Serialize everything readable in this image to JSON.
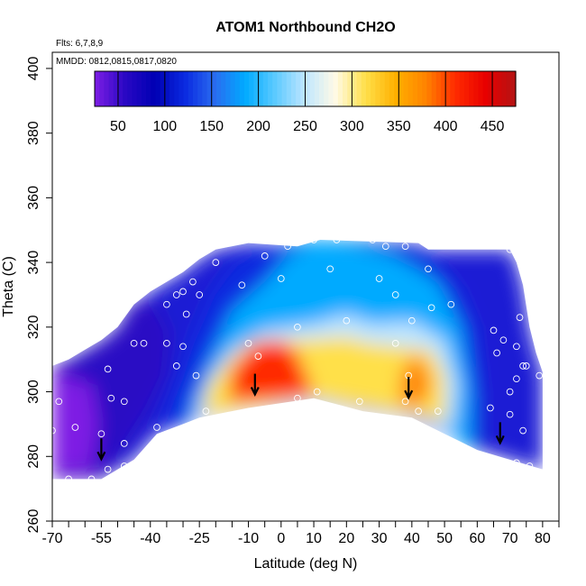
{
  "chart_data": {
    "type": "heatmap",
    "title": "ATOM1 Northbound CH2O",
    "notes": [
      "Flts: 6,7,8,9",
      "MMDD: 0812,0815,0817,0820"
    ],
    "xlabel": "Latitude (deg N)",
    "ylabel": "Theta (C)",
    "xlim": [
      -70,
      85
    ],
    "ylim": [
      260,
      405
    ],
    "xticks_labeled": [
      -70,
      -55,
      -40,
      -25,
      -10,
      0,
      10,
      20,
      30,
      40,
      50,
      60,
      70,
      80
    ],
    "xticks_minor": [
      -65,
      -60,
      -50,
      -45,
      -35,
      -30,
      -20,
      -15,
      -5,
      5,
      15,
      25,
      35,
      45,
      55,
      65,
      75,
      85
    ],
    "yticks": [
      260,
      280,
      300,
      320,
      340,
      360,
      380,
      400
    ],
    "colorbar": {
      "min": 25,
      "max": 475,
      "labels": [
        50,
        100,
        150,
        200,
        250,
        300,
        350,
        400,
        450
      ],
      "dividers": [
        50,
        100,
        150,
        200,
        250,
        300,
        350,
        400,
        450
      ],
      "colors": [
        "#7e1ee4",
        "#2a08c4",
        "#0000b4",
        "#0a2ae0",
        "#2a6cf0",
        "#00aaff",
        "#5ccaff",
        "#bfe6ff",
        "#fffae6",
        "#ffe04a",
        "#ffb000",
        "#ff8400",
        "#ff2a00",
        "#e80000",
        "#b41414"
      ]
    },
    "surface_boundary": {
      "lower": [
        [
          -70,
          273
        ],
        [
          -55,
          273
        ],
        [
          -50,
          276
        ],
        [
          -45,
          279
        ],
        [
          -38,
          287
        ],
        [
          -30,
          290
        ],
        [
          -25,
          292
        ],
        [
          -10,
          295
        ],
        [
          10,
          298
        ],
        [
          25,
          294
        ],
        [
          40,
          292
        ],
        [
          50,
          287
        ],
        [
          60,
          282
        ],
        [
          70,
          279
        ],
        [
          80,
          276
        ]
      ],
      "upper": [
        [
          80,
          306
        ],
        [
          78,
          312
        ],
        [
          76,
          320
        ],
        [
          74,
          333
        ],
        [
          72,
          340
        ],
        [
          70,
          344
        ],
        [
          45,
          344
        ],
        [
          42,
          346
        ],
        [
          12,
          347
        ],
        [
          5,
          345
        ],
        [
          -10,
          346
        ],
        [
          -20,
          344
        ],
        [
          -25,
          341
        ],
        [
          -30,
          337
        ],
        [
          -40,
          331
        ],
        [
          -45,
          327
        ],
        [
          -50,
          320
        ],
        [
          -55,
          316
        ],
        [
          -60,
          313
        ],
        [
          -65,
          310
        ],
        [
          -70,
          308
        ]
      ]
    },
    "field_levels": [
      {
        "value": 70,
        "polygon": [
          [
            -70,
            273
          ],
          [
            -54,
            273
          ],
          [
            -50,
            279
          ],
          [
            -45,
            287
          ],
          [
            -40,
            295
          ],
          [
            -35,
            305
          ],
          [
            -34,
            318
          ],
          [
            -38,
            327
          ],
          [
            -46,
            328
          ],
          [
            -50,
            320
          ],
          [
            -55,
            316
          ],
          [
            -60,
            313
          ],
          [
            -65,
            310
          ],
          [
            -70,
            308
          ]
        ]
      },
      {
        "value": 40,
        "polygon": [
          [
            -70,
            275
          ],
          [
            -58,
            276
          ],
          [
            -56,
            290
          ],
          [
            -58,
            302
          ],
          [
            -70,
            306
          ]
        ]
      },
      {
        "value": 130,
        "polygon": [
          [
            -38,
            287
          ],
          [
            -25,
            292
          ],
          [
            0,
            296
          ],
          [
            30,
            295
          ],
          [
            50,
            287
          ],
          [
            62,
            283
          ],
          [
            62,
            300
          ],
          [
            60,
            320
          ],
          [
            55,
            332
          ],
          [
            45,
            343
          ],
          [
            25,
            346
          ],
          [
            10,
            347
          ],
          [
            -5,
            345
          ],
          [
            -15,
            340
          ],
          [
            -22,
            330
          ],
          [
            -28,
            316
          ],
          [
            -33,
            302
          ]
        ]
      },
      {
        "value": 200,
        "polygon": [
          [
            -29,
            292
          ],
          [
            -5,
            295
          ],
          [
            20,
            296
          ],
          [
            45,
            291
          ],
          [
            58,
            282
          ],
          [
            58,
            300
          ],
          [
            55,
            320
          ],
          [
            48,
            334
          ],
          [
            35,
            342
          ],
          [
            20,
            346
          ],
          [
            10,
            347
          ],
          [
            2,
            342
          ],
          [
            -5,
            334
          ],
          [
            -15,
            325
          ],
          [
            -22,
            310
          ]
        ]
      },
      {
        "value": 260,
        "polygon": [
          [
            -26,
            293
          ],
          [
            -10,
            296
          ],
          [
            15,
            297
          ],
          [
            40,
            293
          ],
          [
            52,
            288
          ],
          [
            54,
            302
          ],
          [
            50,
            316
          ],
          [
            40,
            322
          ],
          [
            28,
            321
          ],
          [
            20,
            324
          ],
          [
            10,
            321
          ],
          [
            -5,
            319
          ],
          [
            -15,
            313
          ],
          [
            -22,
            304
          ]
        ]
      },
      {
        "value": 320,
        "polygon": [
          [
            -24,
            293
          ],
          [
            -10,
            295
          ],
          [
            10,
            298
          ],
          [
            40,
            293
          ],
          [
            50,
            291
          ],
          [
            50,
            305
          ],
          [
            46,
            313
          ],
          [
            36,
            314
          ],
          [
            27,
            315
          ],
          [
            20,
            317
          ],
          [
            5,
            316
          ],
          [
            -8,
            316
          ],
          [
            -16,
            310
          ],
          [
            -22,
            302
          ]
        ]
      },
      {
        "value": 400,
        "polygon": [
          [
            -16,
            297
          ],
          [
            0,
            298
          ],
          [
            10,
            299
          ],
          [
            5,
            312
          ],
          [
            0,
            316
          ],
          [
            -8,
            315
          ],
          [
            -15,
            307
          ]
        ]
      },
      {
        "value": 380,
        "polygon": [
          [
            36,
            296
          ],
          [
            44,
            296
          ],
          [
            46,
            304
          ],
          [
            42,
            312
          ],
          [
            37,
            307
          ]
        ]
      }
    ],
    "samples": [
      [
        -65,
        273
      ],
      [
        -58,
        273
      ],
      [
        -70,
        288
      ],
      [
        -63,
        289
      ],
      [
        -55,
        287
      ],
      [
        -53,
        276
      ],
      [
        -48,
        277
      ],
      [
        -48,
        284
      ],
      [
        -52,
        298
      ],
      [
        -48,
        297
      ],
      [
        -53,
        307
      ],
      [
        -68,
        297
      ],
      [
        -45,
        315
      ],
      [
        -42,
        315
      ],
      [
        -38,
        289
      ],
      [
        -35,
        315
      ],
      [
        -32,
        308
      ],
      [
        -30,
        314
      ],
      [
        -26,
        305
      ],
      [
        -23,
        294
      ],
      [
        -29,
        324
      ],
      [
        -25,
        330
      ],
      [
        -20,
        340
      ],
      [
        -35,
        327
      ],
      [
        -32,
        330
      ],
      [
        -30,
        331
      ],
      [
        -27,
        334
      ],
      [
        -12,
        333
      ],
      [
        -10,
        315
      ],
      [
        -5,
        342
      ],
      [
        2,
        345
      ],
      [
        0,
        335
      ],
      [
        -7,
        311
      ],
      [
        5,
        298
      ],
      [
        5,
        320
      ],
      [
        10,
        347
      ],
      [
        11,
        300
      ],
      [
        15,
        338
      ],
      [
        17,
        347
      ],
      [
        20,
        322
      ],
      [
        24,
        297
      ],
      [
        28,
        347
      ],
      [
        30,
        335
      ],
      [
        32,
        345
      ],
      [
        38,
        345
      ],
      [
        35,
        330
      ],
      [
        35,
        315
      ],
      [
        40,
        322
      ],
      [
        45,
        338
      ],
      [
        46,
        326
      ],
      [
        39,
        305
      ],
      [
        38,
        297
      ],
      [
        42,
        294
      ],
      [
        48,
        294
      ],
      [
        52,
        327
      ],
      [
        65,
        319
      ],
      [
        68,
        316
      ],
      [
        72,
        314
      ],
      [
        70,
        344
      ],
      [
        73,
        323
      ],
      [
        78,
        322
      ],
      [
        75,
        308
      ],
      [
        79,
        305
      ],
      [
        72,
        304
      ],
      [
        74,
        308
      ],
      [
        70,
        300
      ],
      [
        70,
        293
      ],
      [
        74,
        288
      ],
      [
        72,
        278
      ],
      [
        76,
        277
      ],
      [
        81,
        276
      ],
      [
        66,
        312
      ],
      [
        64,
        295
      ]
    ],
    "surface_arrows": [
      [
        -55,
        280
      ],
      [
        -8,
        300
      ],
      [
        39,
        299
      ],
      [
        67,
        285
      ]
    ]
  }
}
